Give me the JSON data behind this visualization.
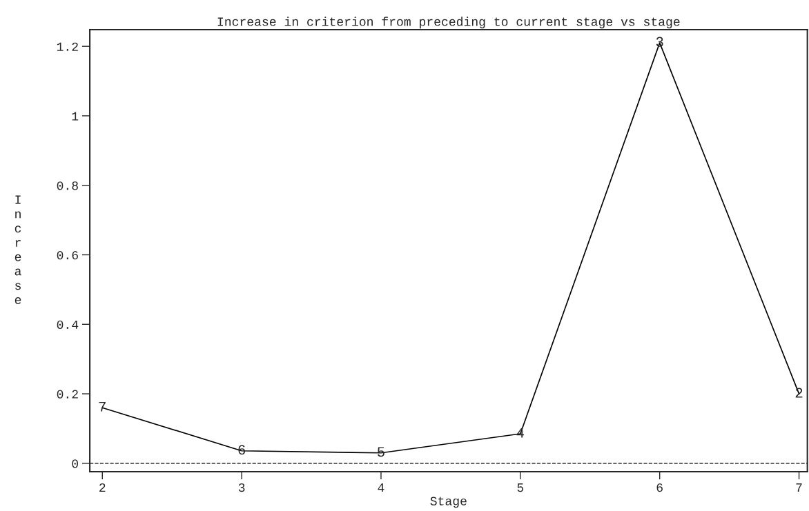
{
  "chart_data": {
    "type": "line",
    "title": "Increase in criterion from preceding to current stage vs stage",
    "xlabel": "Stage",
    "ylabel": "Increase",
    "x": [
      2,
      3,
      4,
      5,
      6,
      7
    ],
    "series": [
      {
        "color": "#000000",
        "values": [
          0.16,
          0.036,
          0.03,
          0.085,
          1.21,
          0.2
        ]
      }
    ],
    "xlim": [
      1.91,
      7.06
    ],
    "ylim": [
      -0.024,
      1.248
    ],
    "xticks": [
      2,
      3,
      4,
      5,
      6,
      7
    ],
    "yticks": [
      0,
      0.2,
      0.4,
      0.6,
      0.8,
      1,
      1.2
    ],
    "ref_lines": [
      {
        "axis": "y",
        "value": 0,
        "color": "#000000",
        "line_style": "dashed"
      }
    ],
    "annotations": [
      {
        "text": "7",
        "x": 2,
        "y": 0.16
      },
      {
        "text": "6",
        "x": 3,
        "y": 0.036
      },
      {
        "text": "5",
        "x": 4,
        "y": 0.03
      },
      {
        "text": "4",
        "x": 5,
        "y": 0.085
      },
      {
        "text": "3",
        "x": 6,
        "y": 1.21
      },
      {
        "text": "2",
        "x": 7,
        "y": 0.2
      }
    ],
    "grid": false,
    "legend": false,
    "marker": "none",
    "line_style": "solid"
  }
}
